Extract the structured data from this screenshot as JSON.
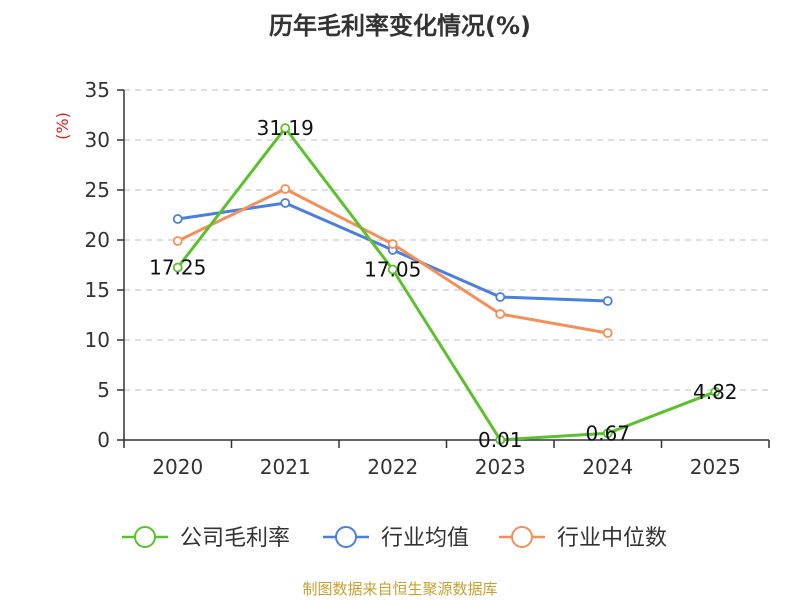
{
  "chart_data": {
    "type": "line",
    "title": "历年毛利率变化情况(%)",
    "ylabel": "(%)",
    "xlabel": "",
    "categories": [
      "2020",
      "2021",
      "2022",
      "2023",
      "2024",
      "2025"
    ],
    "ylim": [
      0,
      35
    ],
    "yticks": [
      0,
      5,
      10,
      15,
      20,
      25,
      30,
      35
    ],
    "grid": true,
    "legend_position": "bottom",
    "series": [
      {
        "name": "公司毛利率",
        "color": "#5cc12e",
        "values": [
          17.25,
          31.19,
          17.05,
          0.01,
          0.67,
          4.82
        ],
        "labels": [
          "17.25",
          "31.19",
          "17.05",
          "0.01",
          "0.67",
          "4.82"
        ]
      },
      {
        "name": "行业均值",
        "color": "#4a7fe0",
        "values": [
          22.1,
          23.7,
          19.0,
          14.3,
          13.9,
          null
        ]
      },
      {
        "name": "行业中位数",
        "color": "#f58f5a",
        "values": [
          19.9,
          25.1,
          19.6,
          12.6,
          10.7,
          null
        ]
      }
    ]
  },
  "source": "制图数据来自恒生聚源数据库"
}
